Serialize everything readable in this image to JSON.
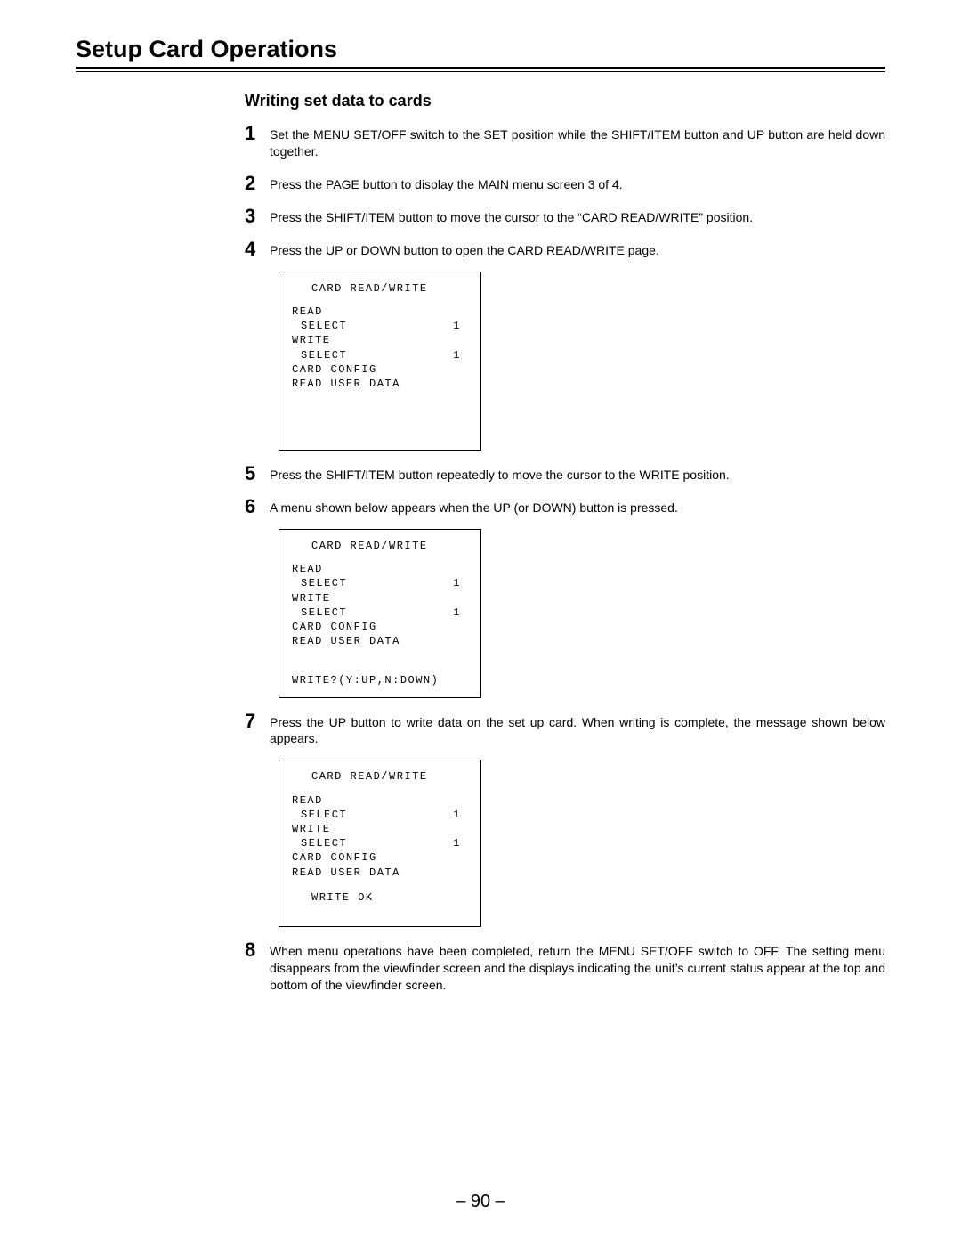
{
  "title": "Setup Card Operations",
  "subtitle": "Writing set data to cards",
  "steps": [
    {
      "num": "1",
      "text": "Set the MENU SET/OFF switch to the SET position while the SHIFT/ITEM button and UP button are held down together."
    },
    {
      "num": "2",
      "text": "Press the PAGE button to display the MAIN menu screen 3 of 4."
    },
    {
      "num": "3",
      "text": "Press the SHIFT/ITEM button to move the cursor to the “CARD READ/WRITE” position."
    },
    {
      "num": "4",
      "text": "Press the UP or DOWN button to open the CARD READ/WRITE page."
    },
    {
      "num": "5",
      "text": "Press the SHIFT/ITEM button repeatedly to move the cursor to the WRITE position."
    },
    {
      "num": "6",
      "text": "A menu shown below appears when the UP (or DOWN) button is pressed."
    },
    {
      "num": "7",
      "text": "Press the UP button to write data on the set up card. When writing is complete, the message shown below appears."
    },
    {
      "num": "8",
      "text": "When menu operations have been completed, return the MENU SET/OFF switch to OFF. The setting menu disappears from the viewfinder screen and the displays indicating the unit’s current status appear at the top and bottom of the viewfinder screen."
    }
  ],
  "screen": {
    "title": "CARD READ/WRITE",
    "read": "READ",
    "select": "SELECT",
    "select_val": "1",
    "write": "WRITE",
    "card_config": "CARD CONFIG",
    "read_user_data": "READ USER DATA",
    "prompt": "WRITE?(Y:UP,N:DOWN)",
    "ok": "WRITE OK"
  },
  "page_number": "– 90 –"
}
